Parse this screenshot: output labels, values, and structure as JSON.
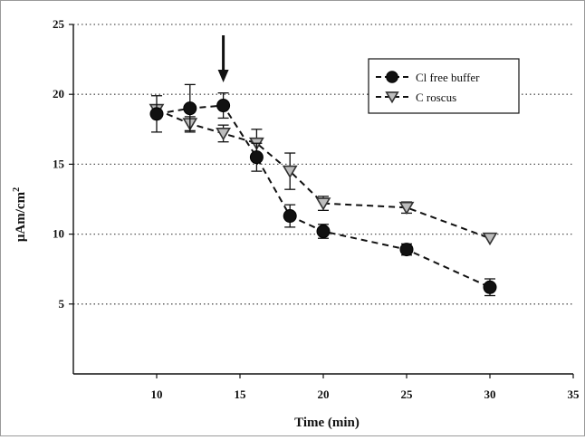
{
  "chart_data": {
    "type": "line",
    "xlabel": "Time (min)",
    "ylabel": "μAm/cm",
    "ylabel_sup": "2",
    "xlim": [
      5,
      35
    ],
    "ylim": [
      0,
      25
    ],
    "xticks": [
      10,
      15,
      20,
      25,
      30,
      35
    ],
    "yticks": [
      5,
      10,
      15,
      20,
      25
    ],
    "grid": "horizontal dotted",
    "legend_position": "top-right",
    "annotation": {
      "type": "down-arrow",
      "x": 14
    },
    "series": [
      {
        "name": "Cl free buffer",
        "marker": "filled-circle",
        "color": "#111111",
        "points": [
          {
            "x": 10,
            "y": 18.6,
            "err": 1.3
          },
          {
            "x": 12,
            "y": 19.0,
            "err": 1.7
          },
          {
            "x": 14,
            "y": 19.2,
            "err": 0.9
          },
          {
            "x": 16,
            "y": 15.5,
            "err": 1.0
          },
          {
            "x": 18,
            "y": 11.3,
            "err": 0.8
          },
          {
            "x": 20,
            "y": 10.2,
            "err": 0.5
          },
          {
            "x": 25,
            "y": 8.9,
            "err": 0.4
          },
          {
            "x": 30,
            "y": 6.2,
            "err": 0.6
          }
        ]
      },
      {
        "name": "C roscus",
        "marker": "open-triangle-down",
        "color": "#bdbdbd",
        "points": [
          {
            "x": 10,
            "y": 18.9,
            "err": 0.0
          },
          {
            "x": 12,
            "y": 17.9,
            "err": 0.5
          },
          {
            "x": 14,
            "y": 17.2,
            "err": 0.6
          },
          {
            "x": 16,
            "y": 16.5,
            "err": 1.0
          },
          {
            "x": 18,
            "y": 14.5,
            "err": 1.3
          },
          {
            "x": 20,
            "y": 12.2,
            "err": 0.5
          },
          {
            "x": 25,
            "y": 11.9,
            "err": 0.4
          },
          {
            "x": 30,
            "y": 9.7,
            "err": 0.0
          }
        ]
      }
    ]
  }
}
